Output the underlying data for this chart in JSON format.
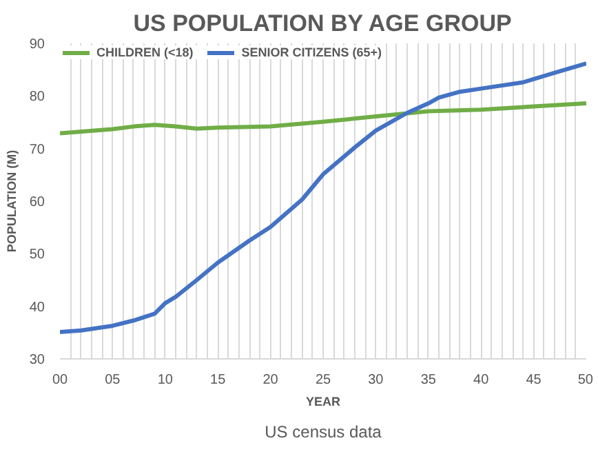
{
  "chart_data": {
    "type": "line",
    "title": "US POPULATION BY AGE GROUP",
    "xlabel": "YEAR",
    "ylabel": "POPULATION (M)",
    "annotations": [
      "US census data"
    ],
    "xlim": [
      0,
      50
    ],
    "ylim": [
      30,
      90
    ],
    "yticks": [
      30,
      40,
      50,
      60,
      70,
      80,
      90
    ],
    "xticks": [
      {
        "value": 0,
        "label": "00"
      },
      {
        "value": 1,
        "label": null
      },
      {
        "value": 2,
        "label": null
      },
      {
        "value": 3,
        "label": null
      },
      {
        "value": 4,
        "label": null
      },
      {
        "value": 5,
        "label": "05"
      },
      {
        "value": 6,
        "label": null
      },
      {
        "value": 7,
        "label": null
      },
      {
        "value": 8,
        "label": null
      },
      {
        "value": 9,
        "label": null
      },
      {
        "value": 10,
        "label": "10"
      },
      {
        "value": 11,
        "label": null
      },
      {
        "value": 12,
        "label": null
      },
      {
        "value": 13,
        "label": null
      },
      {
        "value": 14,
        "label": null
      },
      {
        "value": 15,
        "label": "15"
      },
      {
        "value": 16,
        "label": null
      },
      {
        "value": 17,
        "label": null
      },
      {
        "value": 18,
        "label": null
      },
      {
        "value": 19,
        "label": null
      },
      {
        "value": 20,
        "label": "20"
      },
      {
        "value": 21,
        "label": null
      },
      {
        "value": 22,
        "label": null
      },
      {
        "value": 23,
        "label": null
      },
      {
        "value": 24,
        "label": null
      },
      {
        "value": 25,
        "label": "25"
      },
      {
        "value": 26,
        "label": null
      },
      {
        "value": 27,
        "label": null
      },
      {
        "value": 28,
        "label": null
      },
      {
        "value": 29,
        "label": null
      },
      {
        "value": 30,
        "label": "30"
      },
      {
        "value": 31,
        "label": null
      },
      {
        "value": 32,
        "label": null
      },
      {
        "value": 33,
        "label": null
      },
      {
        "value": 34,
        "label": null
      },
      {
        "value": 35,
        "label": "35"
      },
      {
        "value": 36,
        "label": null
      },
      {
        "value": 37,
        "label": null
      },
      {
        "value": 38,
        "label": null
      },
      {
        "value": 39,
        "label": null
      },
      {
        "value": 40,
        "label": "40"
      },
      {
        "value": 41,
        "label": null
      },
      {
        "value": 42,
        "label": null
      },
      {
        "value": 43,
        "label": null
      },
      {
        "value": 44,
        "label": null
      },
      {
        "value": 45,
        "label": "45"
      },
      {
        "value": 46,
        "label": null
      },
      {
        "value": 47,
        "label": null
      },
      {
        "value": 48,
        "label": null
      },
      {
        "value": 49,
        "label": null
      },
      {
        "value": 50,
        "label": "50"
      }
    ],
    "grid": "x",
    "legend": "top",
    "marker": "none",
    "line_style": "solid",
    "series": [
      {
        "name": "CHILDREN (<18)",
        "color": "#70ad47",
        "x": [
          0,
          5,
          7,
          9,
          11,
          13,
          15,
          20,
          25,
          30,
          35,
          40,
          45,
          50
        ],
        "values": [
          72.9,
          73.7,
          74.2,
          74.5,
          74.2,
          73.8,
          74.0,
          74.2,
          75.1,
          76.1,
          77.1,
          77.4,
          78.0,
          78.6
        ]
      },
      {
        "name": "SENIOR CITIZENS (65+)",
        "color": "#4472c4",
        "x": [
          0,
          2,
          5,
          7,
          9,
          10,
          11,
          13,
          15,
          18,
          20,
          23,
          25,
          28,
          30,
          33,
          35,
          36,
          38,
          40,
          44,
          47,
          50
        ],
        "values": [
          35.1,
          35.4,
          36.3,
          37.3,
          38.6,
          40.6,
          41.8,
          45.0,
          48.3,
          52.5,
          55.1,
          60.3,
          65.1,
          70.2,
          73.4,
          76.8,
          78.6,
          79.7,
          80.8,
          81.4,
          82.6,
          84.4,
          86.2
        ]
      }
    ]
  }
}
